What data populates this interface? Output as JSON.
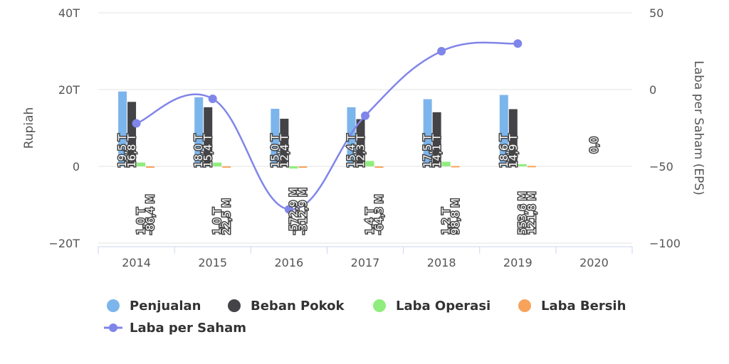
{
  "chart_data": {
    "type": "bar",
    "categories": [
      "2014",
      "2015",
      "2016",
      "2017",
      "2018",
      "2019",
      "2020"
    ],
    "y_left": {
      "label": "Rupiah",
      "ticks": [
        "40T",
        "20T",
        "0",
        "−20T"
      ],
      "tick_values": [
        40,
        20,
        0,
        -20
      ],
      "range": [
        -20,
        40
      ],
      "unit": "trillion rupiah"
    },
    "y_right": {
      "label": "Laba per Saham (EPS)",
      "ticks": [
        "50",
        "0",
        "−50",
        "−100"
      ],
      "tick_values": [
        50,
        0,
        -50,
        -100
      ],
      "range": [
        -100,
        50
      ]
    },
    "grid": true,
    "legend_position": "bottom",
    "series": [
      {
        "name": "Penjualan",
        "type": "bar",
        "axis": "left",
        "color": "#7cb5ec",
        "values": [
          19.5,
          18.0,
          15.0,
          15.4,
          17.5,
          18.6,
          0.0
        ],
        "labels": [
          "19,5 T",
          "18,0 T",
          "15,0 T",
          "15,4 T",
          "17,5 T",
          "18,6 T",
          "0,0"
        ]
      },
      {
        "name": "Beban Pokok",
        "type": "bar",
        "axis": "left",
        "color": "#434348",
        "values": [
          16.8,
          15.4,
          12.4,
          12.3,
          14.1,
          14.9,
          0.0
        ],
        "labels": [
          "16,8 T",
          "15,4 T",
          "12,4 T",
          "12,3 T",
          "14,1 T",
          "14,9 T",
          "0,0"
        ]
      },
      {
        "name": "Laba Operasi",
        "type": "bar",
        "axis": "left",
        "color": "#90ed7d",
        "values": [
          1.0,
          1.0,
          -0.5729,
          1.4,
          1.2,
          0.5536,
          0.0
        ],
        "labels": [
          "1,0 T",
          "1,0 T",
          "-572,9 M",
          "1,4 T",
          "1,2 T",
          "553,6 M",
          "0,0"
        ]
      },
      {
        "name": "Laba Bersih",
        "type": "bar",
        "axis": "left",
        "color": "#f7a35c",
        "values": [
          -0.0864,
          0.0225,
          -0.3129,
          -0.0643,
          0.0988,
          0.1218,
          0.0
        ],
        "labels": [
          "-86,4 M",
          "22,5 M",
          "-312,9 M",
          "-64,3 M",
          "98,8 M",
          "121,8 M",
          "0,0"
        ]
      },
      {
        "name": "Laba per Saham",
        "type": "line",
        "axis": "right",
        "color": "#8085e9",
        "values": [
          -22,
          -6,
          -78,
          -17,
          25,
          30,
          null
        ]
      }
    ]
  }
}
